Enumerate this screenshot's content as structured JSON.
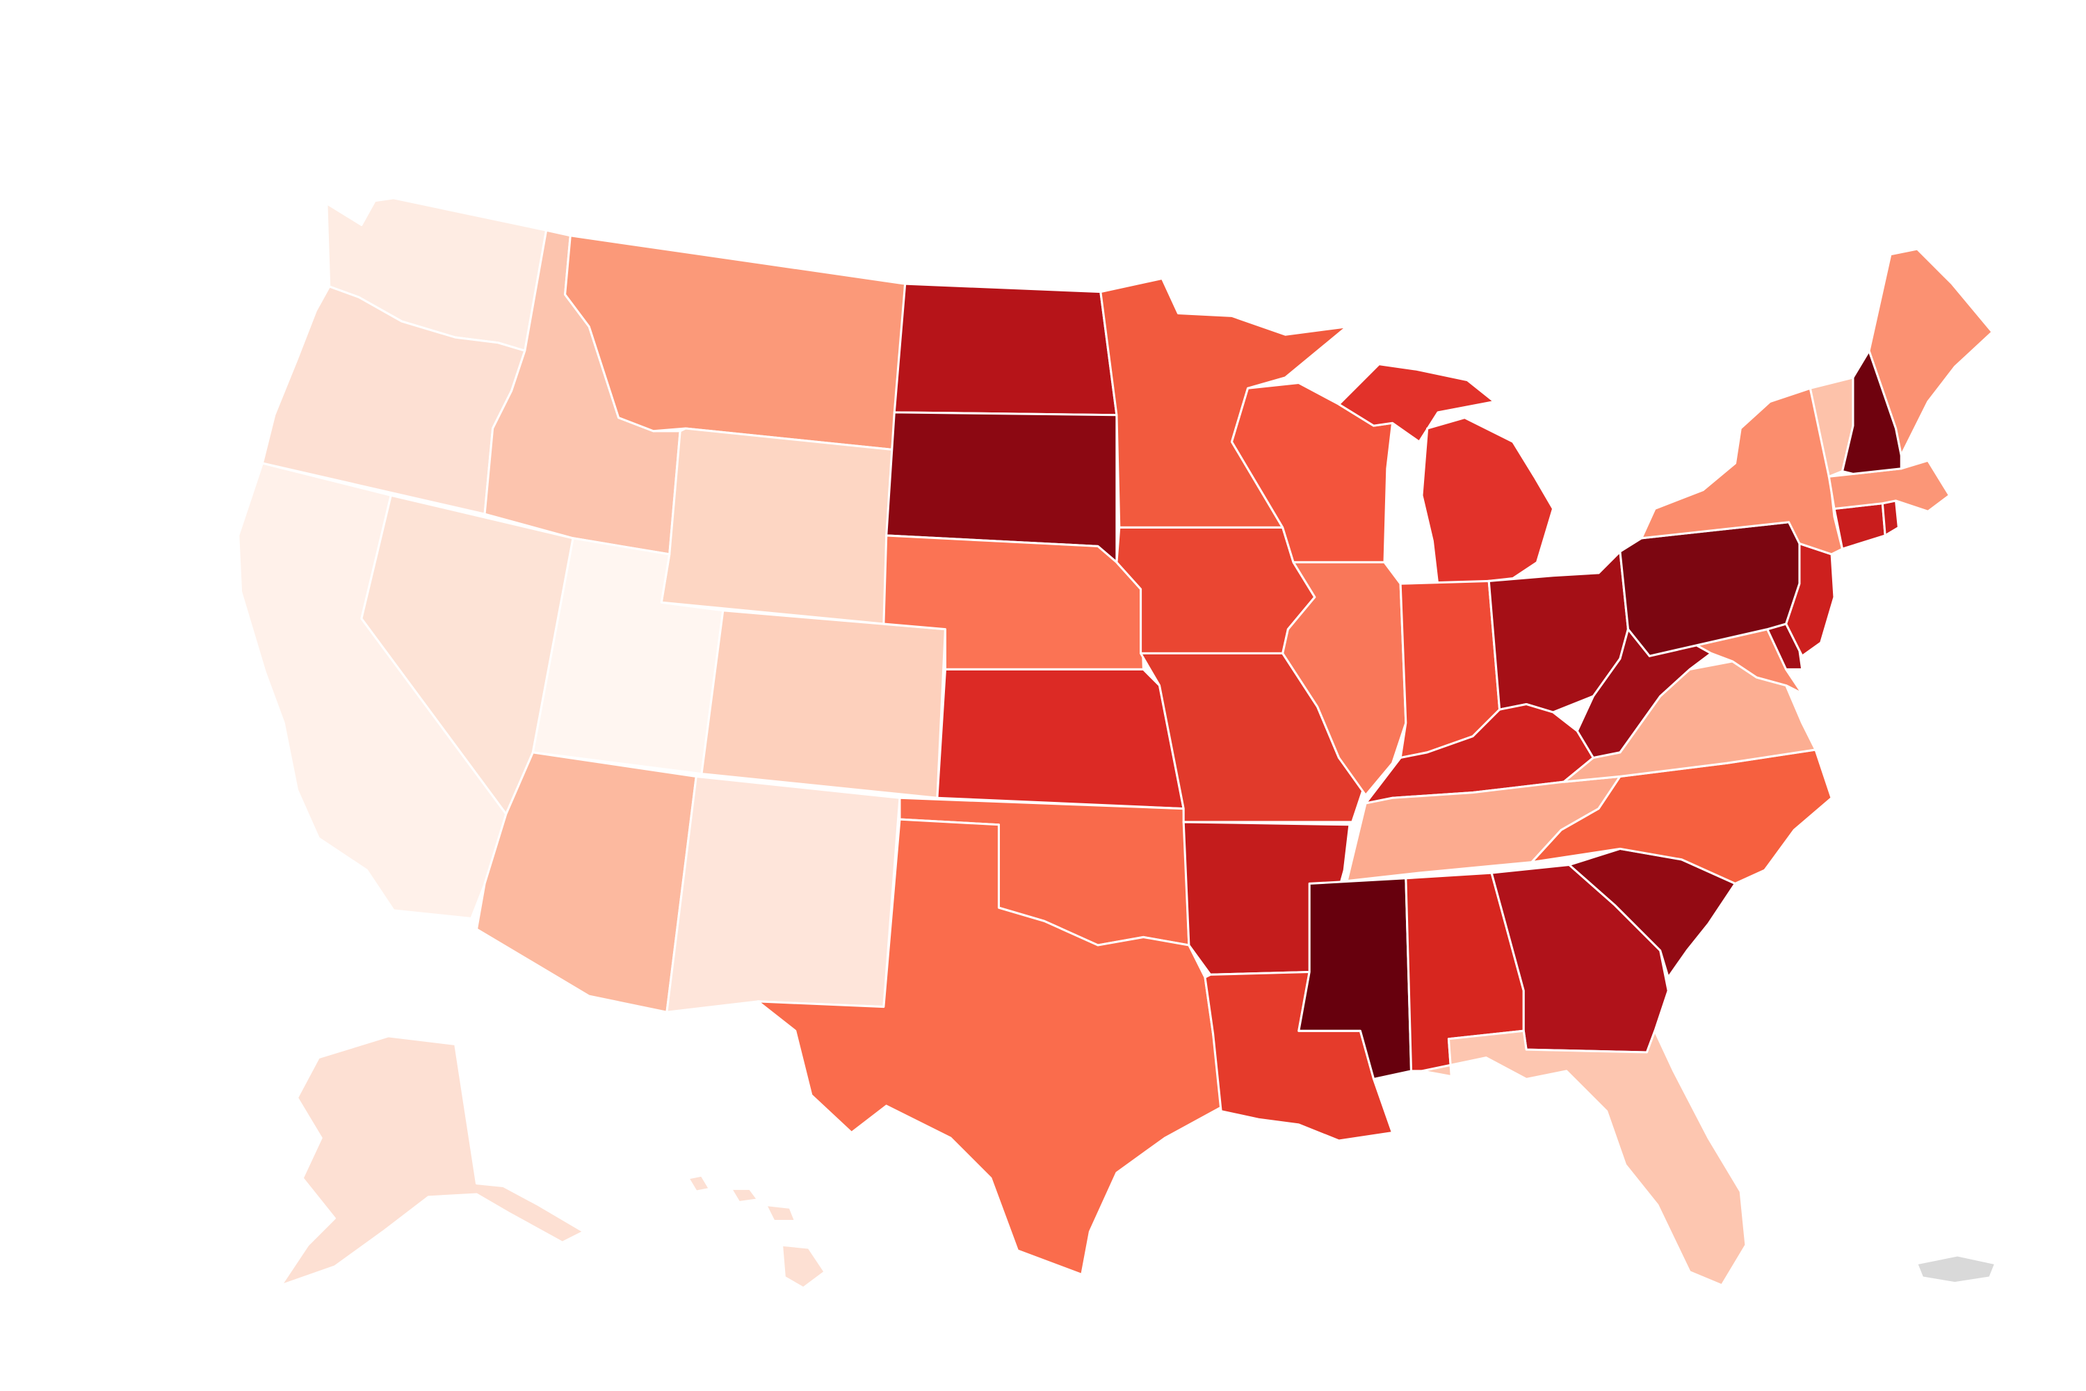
{
  "map": {
    "type": "choropleth",
    "region": "United States",
    "palette": {
      "scale": [
        "#fff5f0",
        "#fee0d2",
        "#fcbba1",
        "#fc9272",
        "#fb6a4a",
        "#ef3b2c",
        "#cb181d",
        "#a50f15",
        "#67000d"
      ],
      "no_data": "#d9d9d9"
    },
    "states": [
      {
        "code": "WA",
        "color": "#feece3"
      },
      {
        "code": "OR",
        "color": "#fde0d3"
      },
      {
        "code": "CA",
        "color": "#fff1ea"
      },
      {
        "code": "NV",
        "color": "#fde3d6"
      },
      {
        "code": "ID",
        "color": "#fcc4ae"
      },
      {
        "code": "MT",
        "color": "#fb9979"
      },
      {
        "code": "WY",
        "color": "#fdd6c3"
      },
      {
        "code": "UT",
        "color": "#fff6f1"
      },
      {
        "code": "CO",
        "color": "#fdd0bc"
      },
      {
        "code": "AZ",
        "color": "#fcb99f"
      },
      {
        "code": "NM",
        "color": "#fee5da"
      },
      {
        "code": "ND",
        "color": "#b61419"
      },
      {
        "code": "SD",
        "color": "#8c0812"
      },
      {
        "code": "NE",
        "color": "#fb7354"
      },
      {
        "code": "KS",
        "color": "#dc2a25"
      },
      {
        "code": "OK",
        "color": "#f96a4b"
      },
      {
        "code": "TX",
        "color": "#fa6c4c"
      },
      {
        "code": "MN",
        "color": "#f25a3e"
      },
      {
        "code": "IA",
        "color": "#ea4632"
      },
      {
        "code": "MO",
        "color": "#e13a2b"
      },
      {
        "code": "AR",
        "color": "#c41c1c"
      },
      {
        "code": "LA",
        "color": "#e53b2b"
      },
      {
        "code": "WI",
        "color": "#f3543c"
      },
      {
        "code": "IL",
        "color": "#f97759"
      },
      {
        "code": "MI",
        "color": "#e2322a"
      },
      {
        "code": "IN",
        "color": "#ef4a35"
      },
      {
        "code": "OH",
        "color": "#a50f16"
      },
      {
        "code": "KY",
        "color": "#d0221f"
      },
      {
        "code": "TN",
        "color": "#fcab8f"
      },
      {
        "code": "MS",
        "color": "#67000d"
      },
      {
        "code": "AL",
        "color": "#d7261f"
      },
      {
        "code": "GA",
        "color": "#b0121a"
      },
      {
        "code": "FL",
        "color": "#fdc6b0"
      },
      {
        "code": "SC",
        "color": "#930a13"
      },
      {
        "code": "NC",
        "color": "#f6603f"
      },
      {
        "code": "VA",
        "color": "#fcae92"
      },
      {
        "code": "WV",
        "color": "#9e0d16"
      },
      {
        "code": "MD",
        "color": "#fa8a6b"
      },
      {
        "code": "DE",
        "color": "#a30e16"
      },
      {
        "code": "PA",
        "color": "#7c0611"
      },
      {
        "code": "NJ",
        "color": "#cd201e"
      },
      {
        "code": "NY",
        "color": "#fb8d6d"
      },
      {
        "code": "CT",
        "color": "#c91d1d"
      },
      {
        "code": "RI",
        "color": "#c91d1d"
      },
      {
        "code": "MA",
        "color": "#fb9677"
      },
      {
        "code": "VT",
        "color": "#fdc2aa"
      },
      {
        "code": "NH",
        "color": "#6f020e"
      },
      {
        "code": "ME",
        "color": "#fb9172"
      },
      {
        "code": "AK",
        "color": "#fde0d3"
      },
      {
        "code": "HI",
        "color": "#fde0d3"
      },
      {
        "code": "PR",
        "color": "#d9d9d9"
      }
    ]
  }
}
